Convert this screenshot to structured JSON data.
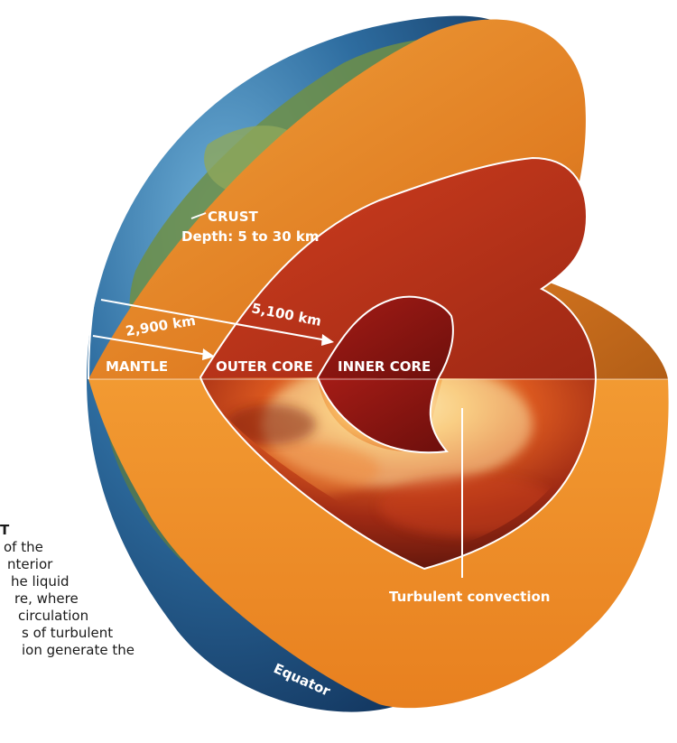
{
  "labels": {
    "crust": "CRUST",
    "crust_depth": "Depth: 5 to 30 km",
    "mantle": "MANTLE",
    "outer_core": "OUTER CORE",
    "inner_core": "INNER CORE",
    "dist_mantle": "2,900 km",
    "dist_inner": "5,100 km",
    "convection": "Turbulent convection",
    "equator": "Equator"
  },
  "caption": {
    "lines": [
      "T",
      "of the",
      "nterior",
      "he liquid",
      "re, where",
      "circulation",
      "s of turbulent",
      "ion generate the"
    ]
  },
  "colors": {
    "ocean": "#2e6da0",
    "land": "#6e8f45",
    "mantle": "#ed8a26",
    "outer_core": "#b53119",
    "inner_core": "#8e1612",
    "convection_glow": "#f6c27a",
    "outline": "#ffffff"
  }
}
